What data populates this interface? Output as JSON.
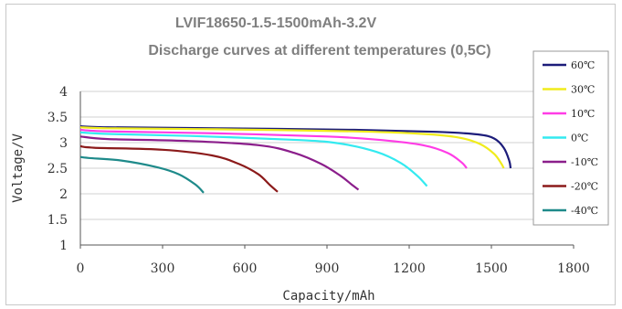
{
  "chart_data": {
    "type": "line",
    "title": "LVIF18650-1.5-1500mAh-3.2V",
    "subtitle": "Discharge curves at different temperatures (0,5C)",
    "xlabel": "Capacity/mAh",
    "ylabel": "Voltage/V",
    "xlim": [
      0,
      1800
    ],
    "ylim": [
      1,
      4
    ],
    "x_ticks": [
      "0",
      "300",
      "600",
      "900",
      "1200",
      "1500",
      "1800"
    ],
    "y_ticks": [
      "1",
      "1.5",
      "2",
      "2.5",
      "3",
      "3.5",
      "4"
    ],
    "grid": "horizontal",
    "legend_position": "right",
    "series": [
      {
        "name": "60℃",
        "color": "#1c1c7a",
        "points": [
          [
            0,
            3.32
          ],
          [
            100,
            3.3
          ],
          [
            500,
            3.28
          ],
          [
            1000,
            3.25
          ],
          [
            1300,
            3.21
          ],
          [
            1450,
            3.16
          ],
          [
            1510,
            3.08
          ],
          [
            1545,
            2.9
          ],
          [
            1565,
            2.65
          ],
          [
            1570,
            2.5
          ]
        ]
      },
      {
        "name": "30℃",
        "color": "#f0ec1c",
        "points": [
          [
            0,
            3.3
          ],
          [
            100,
            3.28
          ],
          [
            500,
            3.26
          ],
          [
            1000,
            3.22
          ],
          [
            1250,
            3.17
          ],
          [
            1380,
            3.1
          ],
          [
            1460,
            2.97
          ],
          [
            1510,
            2.78
          ],
          [
            1535,
            2.6
          ],
          [
            1545,
            2.5
          ]
        ]
      },
      {
        "name": "10℃",
        "color": "#ff3ce6",
        "points": [
          [
            0,
            3.25
          ],
          [
            100,
            3.22
          ],
          [
            500,
            3.18
          ],
          [
            900,
            3.12
          ],
          [
            1100,
            3.05
          ],
          [
            1250,
            2.95
          ],
          [
            1340,
            2.8
          ],
          [
            1390,
            2.62
          ],
          [
            1410,
            2.5
          ]
        ]
      },
      {
        "name": "0℃",
        "color": "#34eaf0",
        "points": [
          [
            0,
            3.2
          ],
          [
            100,
            3.17
          ],
          [
            400,
            3.13
          ],
          [
            800,
            3.05
          ],
          [
            950,
            2.98
          ],
          [
            1080,
            2.82
          ],
          [
            1170,
            2.6
          ],
          [
            1230,
            2.35
          ],
          [
            1265,
            2.15
          ]
        ]
      },
      {
        "name": "-10℃",
        "color": "#8b1e8b",
        "points": [
          [
            0,
            3.12
          ],
          [
            100,
            3.07
          ],
          [
            400,
            3.03
          ],
          [
            650,
            2.95
          ],
          [
            780,
            2.8
          ],
          [
            880,
            2.58
          ],
          [
            950,
            2.35
          ],
          [
            990,
            2.18
          ],
          [
            1015,
            2.08
          ]
        ]
      },
      {
        "name": "-20℃",
        "color": "#8b1a1a",
        "points": [
          [
            0,
            2.93
          ],
          [
            50,
            2.9
          ],
          [
            300,
            2.86
          ],
          [
            480,
            2.75
          ],
          [
            580,
            2.58
          ],
          [
            650,
            2.38
          ],
          [
            690,
            2.18
          ],
          [
            720,
            2.04
          ]
        ]
      },
      {
        "name": "-40℃",
        "color": "#1e8a8a",
        "points": [
          [
            0,
            2.72
          ],
          [
            30,
            2.7
          ],
          [
            150,
            2.65
          ],
          [
            280,
            2.52
          ],
          [
            360,
            2.38
          ],
          [
            420,
            2.18
          ],
          [
            450,
            2.02
          ]
        ]
      }
    ]
  }
}
